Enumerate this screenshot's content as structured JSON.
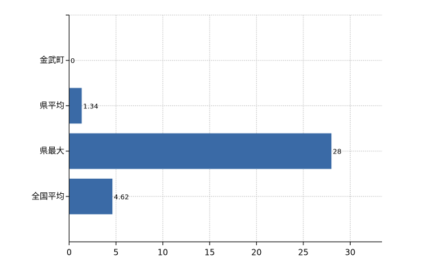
{
  "chart_data": {
    "type": "barh",
    "categories": [
      "金武町",
      "県平均",
      "県最大",
      "全国平均"
    ],
    "values": [
      0,
      1.34,
      28,
      4.62
    ],
    "color": "#3a6aa6",
    "xlim": [
      0,
      33.4
    ],
    "xticks": [
      0,
      5,
      10,
      15,
      20,
      25,
      30
    ],
    "grid": true
  }
}
